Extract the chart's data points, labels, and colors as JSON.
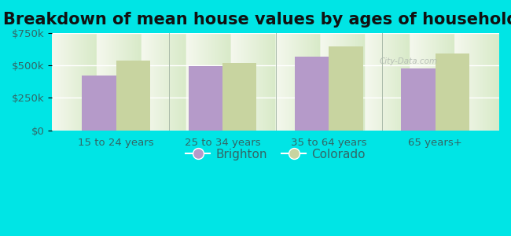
{
  "title": "Breakdown of mean house values by ages of householders",
  "categories": [
    "15 to 24 years",
    "25 to 34 years",
    "35 to 64 years",
    "65 years+"
  ],
  "brighton_values": [
    420000,
    495000,
    570000,
    480000
  ],
  "colorado_values": [
    540000,
    520000,
    645000,
    590000
  ],
  "brighton_color": "#b59ac9",
  "colorado_color": "#c8d4a0",
  "background_color": "#00e5e5",
  "plot_bg_top": "#f5f8ee",
  "plot_bg_bottom": "#d8eac8",
  "ylim": [
    0,
    750000
  ],
  "yticks": [
    0,
    250000,
    500000,
    750000
  ],
  "ytick_labels": [
    "$0",
    "$250k",
    "$500k",
    "$750k"
  ],
  "bar_width": 0.32,
  "legend_brighton": "Brighton",
  "legend_colorado": "Colorado",
  "title_fontsize": 15,
  "tick_fontsize": 9.5,
  "legend_fontsize": 11,
  "tick_color": "#336666",
  "watermark": "City-Data.com"
}
